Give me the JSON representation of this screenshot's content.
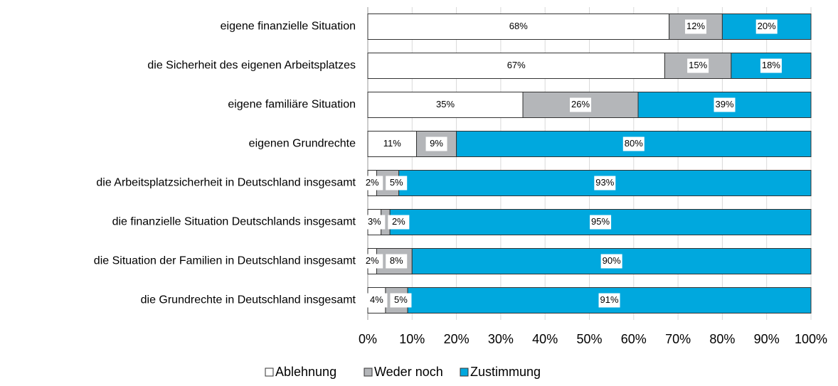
{
  "chart_data": {
    "type": "stacked_bar_horizontal",
    "categories": [
      "eigene finanzielle Situation",
      "die Sicherheit des eigenen Arbeitsplatzes",
      "eigene familiäre Situation",
      "eigenen Grundrechte",
      "die Arbeitsplatzsicherheit in Deutschland insgesamt",
      "die finanzielle Situation Deutschlands insgesamt",
      "die Situation der Familien in Deutschland insgesamt",
      "die Grundrechte in Deutschland insgesamt"
    ],
    "series": [
      {
        "name": "Ablehnung",
        "color": "#ffffff",
        "values": [
          68,
          67,
          35,
          11,
          2,
          3,
          2,
          4
        ],
        "value_labels": [
          "68%",
          "67%",
          "35%",
          "11%",
          "2%",
          "3%",
          "2%",
          "4%"
        ]
      },
      {
        "name": "Weder noch",
        "color": "#b4b6b9",
        "values": [
          12,
          15,
          26,
          9,
          5,
          2,
          8,
          5
        ],
        "value_labels": [
          "12%",
          "15%",
          "26%",
          "9%",
          "5%",
          "2%",
          "8%",
          "5%"
        ]
      },
      {
        "name": "Zustimmung",
        "color": "#00a8de",
        "values": [
          20,
          18,
          39,
          80,
          93,
          95,
          90,
          91
        ],
        "value_labels": [
          "20%",
          "18%",
          "39%",
          "80%",
          "93%",
          "95%",
          "90%",
          "91%"
        ]
      }
    ],
    "xlim": [
      0,
      100
    ],
    "xticks": [
      {
        "value": 0,
        "label": "0%"
      },
      {
        "value": 10,
        "label": "10%"
      },
      {
        "value": 20,
        "label": "20%"
      },
      {
        "value": 30,
        "label": "30%"
      },
      {
        "value": 40,
        "label": "40%"
      },
      {
        "value": 50,
        "label": "50%"
      },
      {
        "value": 60,
        "label": "60%"
      },
      {
        "value": 70,
        "label": "70%"
      },
      {
        "value": 80,
        "label": "80%"
      },
      {
        "value": 90,
        "label": "90%"
      },
      {
        "value": 100,
        "label": "100%"
      }
    ],
    "grid": true,
    "legend": "bottom"
  }
}
